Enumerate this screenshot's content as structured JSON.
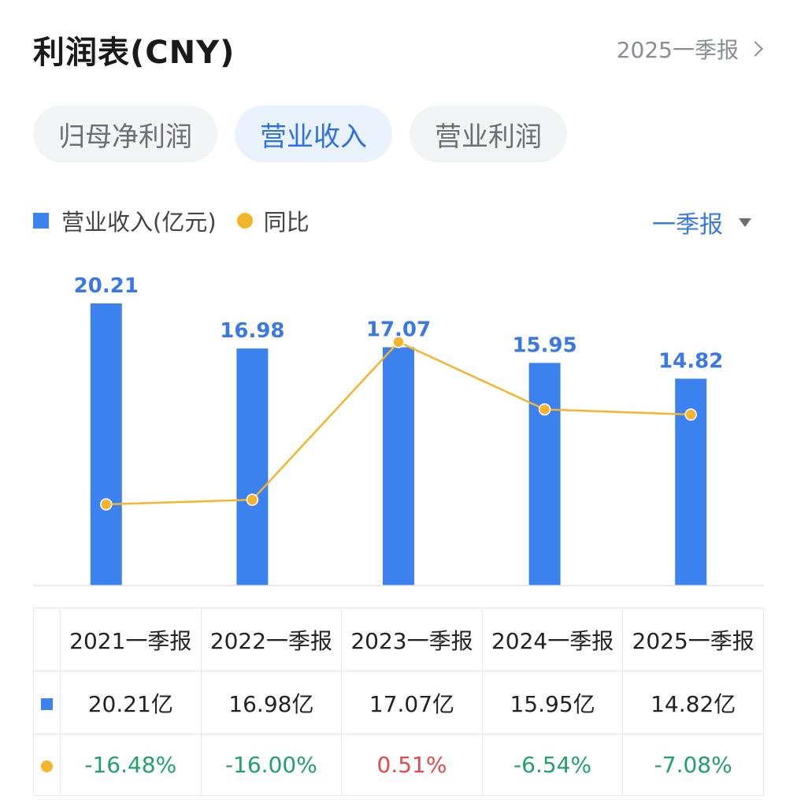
{
  "header": {
    "title": "利润表(CNY)",
    "period_link": "2025一季报"
  },
  "tabs": [
    {
      "label": "归母净利润",
      "active": false
    },
    {
      "label": "营业收入",
      "active": true
    },
    {
      "label": "营业利润",
      "active": false
    }
  ],
  "legend": {
    "bar_label": "营业收入(亿元)",
    "line_label": "同比"
  },
  "period_select": "一季报",
  "colors": {
    "bar": "#3b82ef",
    "line": "#f5b42e",
    "label": "#3a78e6",
    "negative": "#22a06b",
    "positive": "#e5484d"
  },
  "chart_data": {
    "type": "bar",
    "categories": [
      "2021一季报",
      "2022一季报",
      "2023一季报",
      "2024一季报",
      "2025一季报"
    ],
    "series": [
      {
        "name": "营业收入(亿元)",
        "type": "bar",
        "values": [
          20.21,
          16.98,
          17.07,
          15.95,
          14.82
        ],
        "labels": [
          "20.21",
          "16.98",
          "17.07",
          "15.95",
          "14.82"
        ]
      },
      {
        "name": "同比",
        "type": "line",
        "values": [
          -16.48,
          -16.0,
          0.51,
          -6.54,
          -7.08
        ]
      }
    ],
    "ylim": [
      0,
      20.21
    ],
    "y2lim": [
      -16.48,
      0.51
    ],
    "grid": false,
    "legend_position": "top-left"
  },
  "table": {
    "headers": [
      "2021一季报",
      "2022一季报",
      "2023一季报",
      "2024一季报",
      "2025一季报"
    ],
    "revenue": [
      "20.21亿",
      "16.98亿",
      "17.07亿",
      "15.95亿",
      "14.82亿"
    ],
    "yoy": [
      "-16.48%",
      "-16.00%",
      "0.51%",
      "-6.54%",
      "-7.08%"
    ]
  }
}
